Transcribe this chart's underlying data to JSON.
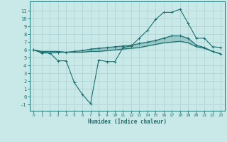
{
  "title": "",
  "xlabel": "Humidex (Indice chaleur)",
  "xlim": [
    -0.5,
    23.5
  ],
  "ylim": [
    -1.8,
    12.2
  ],
  "yticks": [
    -1,
    0,
    1,
    2,
    3,
    4,
    5,
    6,
    7,
    8,
    9,
    10,
    11
  ],
  "xticks": [
    0,
    1,
    2,
    3,
    4,
    5,
    6,
    7,
    8,
    9,
    10,
    11,
    12,
    13,
    14,
    15,
    16,
    17,
    18,
    19,
    20,
    21,
    22,
    23
  ],
  "background_color": "#c9e8e8",
  "grid_color": "#afd0d0",
  "line_color": "#1a7070",
  "line1": [
    6.0,
    5.6,
    5.6,
    4.6,
    4.6,
    1.8,
    0.3,
    -0.9,
    4.7,
    4.5,
    4.5,
    6.3,
    6.5,
    7.5,
    8.5,
    9.9,
    10.8,
    10.8,
    11.2,
    9.4,
    7.5,
    7.5,
    6.4,
    6.3
  ],
  "line2": [
    6.0,
    5.7,
    5.6,
    5.7,
    5.7,
    5.8,
    5.9,
    6.1,
    6.2,
    6.3,
    6.4,
    6.5,
    6.6,
    6.8,
    7.0,
    7.2,
    7.5,
    7.8,
    7.8,
    7.5,
    6.6,
    6.3,
    5.8,
    5.5
  ],
  "line3": [
    6.0,
    5.8,
    5.8,
    5.8,
    5.7,
    5.7,
    5.7,
    5.8,
    5.8,
    5.9,
    6.0,
    6.1,
    6.2,
    6.3,
    6.5,
    6.7,
    6.9,
    7.0,
    7.1,
    6.9,
    6.4,
    6.2,
    5.8,
    5.5
  ]
}
